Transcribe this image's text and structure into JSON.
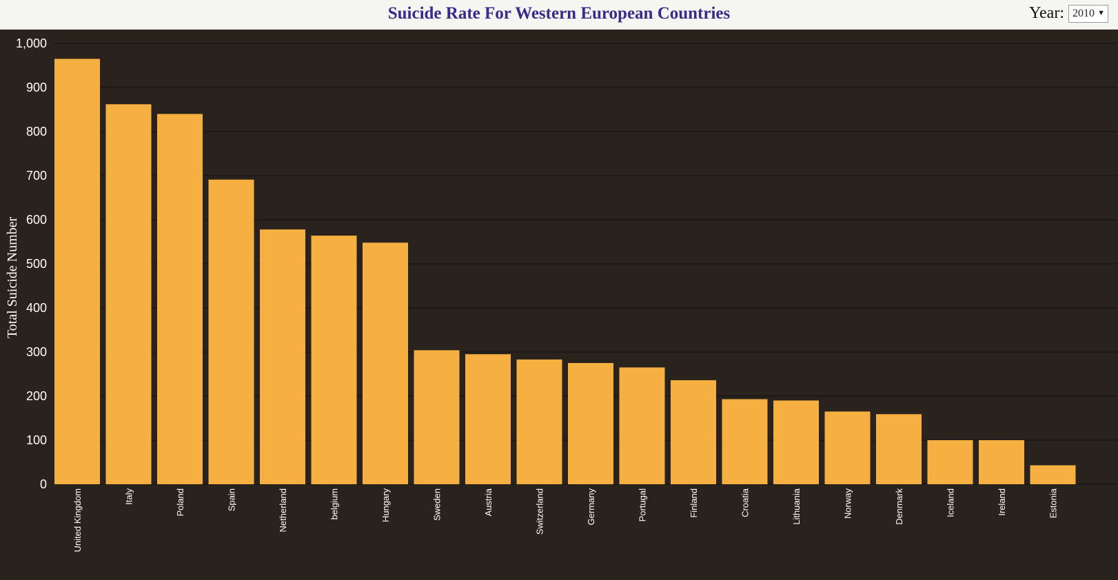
{
  "header": {
    "title": "Suicide Rate For Western European Countries",
    "year_label": "Year:",
    "year_value": "2010"
  },
  "colors": {
    "bar": "#f5b041",
    "background": "#2a221d",
    "grid": "#111111",
    "title": "#3a2a8c"
  },
  "chart_data": {
    "type": "bar",
    "title": "Suicide Rate For Western European Countries",
    "xlabel": "",
    "ylabel": "Total Suicide Number",
    "ylim": [
      0,
      1000
    ],
    "yticks": [
      "0",
      "100",
      "200",
      "300",
      "400",
      "500",
      "600",
      "700",
      "800",
      "900",
      "1,000"
    ],
    "grid": true,
    "categories": [
      "United Kingdom",
      "Italy",
      "Poland",
      "Spain",
      "Netherland",
      "belgium",
      "Hungary",
      "Sweden",
      "Austria",
      "Switzerland",
      "Germany",
      "Portugal",
      "Finland",
      "Croatia",
      "Lithuania",
      "Norway",
      "Denmark",
      "Iceland",
      "Ireland",
      "Estonia"
    ],
    "values": [
      965,
      862,
      840,
      691,
      578,
      564,
      548,
      304,
      295,
      283,
      275,
      265,
      236,
      193,
      190,
      165,
      159,
      100,
      100,
      43
    ]
  }
}
